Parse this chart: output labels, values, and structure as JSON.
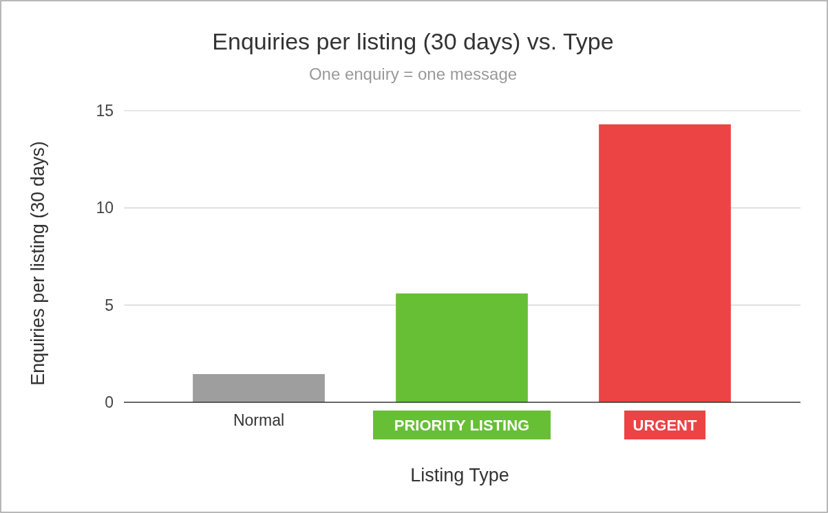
{
  "chart_data": {
    "type": "bar",
    "title": "Enquiries per listing (30 days) vs. Type",
    "subtitle": "One enquiry = one message",
    "xlabel": "Listing Type",
    "ylabel": "Enquiries per listing (30 days)",
    "categories": [
      "Normal",
      "PRIORITY LISTING",
      "URGENT"
    ],
    "values": [
      1.45,
      5.6,
      14.3
    ],
    "colors": [
      "#9e9e9e",
      "#67bf35",
      "#ec4344"
    ],
    "ylim": [
      0,
      15
    ],
    "yticks": [
      0,
      5,
      10,
      15
    ],
    "grid": "y"
  }
}
